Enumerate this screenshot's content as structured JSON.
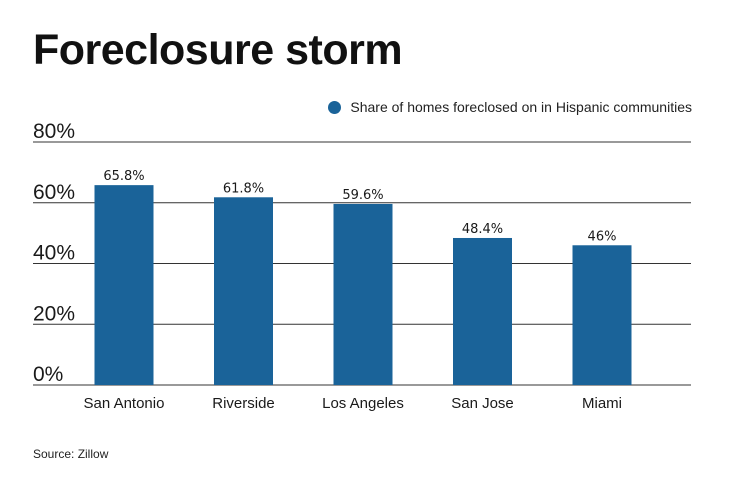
{
  "title": "Foreclosure storm",
  "source": "Source: Zillow",
  "colors": {
    "bar": "#1a6399",
    "grid": "#333333"
  },
  "chart_data": {
    "type": "bar",
    "categories": [
      "San Antonio",
      "Riverside",
      "Los Angeles",
      "San Jose",
      "Miami"
    ],
    "series": [
      {
        "name": "Share of homes foreclosed on in Hispanic communities",
        "values": [
          65.8,
          61.8,
          59.6,
          48.4,
          46
        ],
        "labels": [
          "65.8%",
          "61.8%",
          "59.6%",
          "48.4%",
          "46%"
        ]
      }
    ],
    "ylim": [
      0,
      80
    ],
    "yticks": [
      0,
      20,
      40,
      60,
      80
    ],
    "ytick_labels": [
      "0%",
      "20%",
      "40%",
      "60%",
      "80%"
    ],
    "grid": true,
    "legend_position": "top-right"
  }
}
